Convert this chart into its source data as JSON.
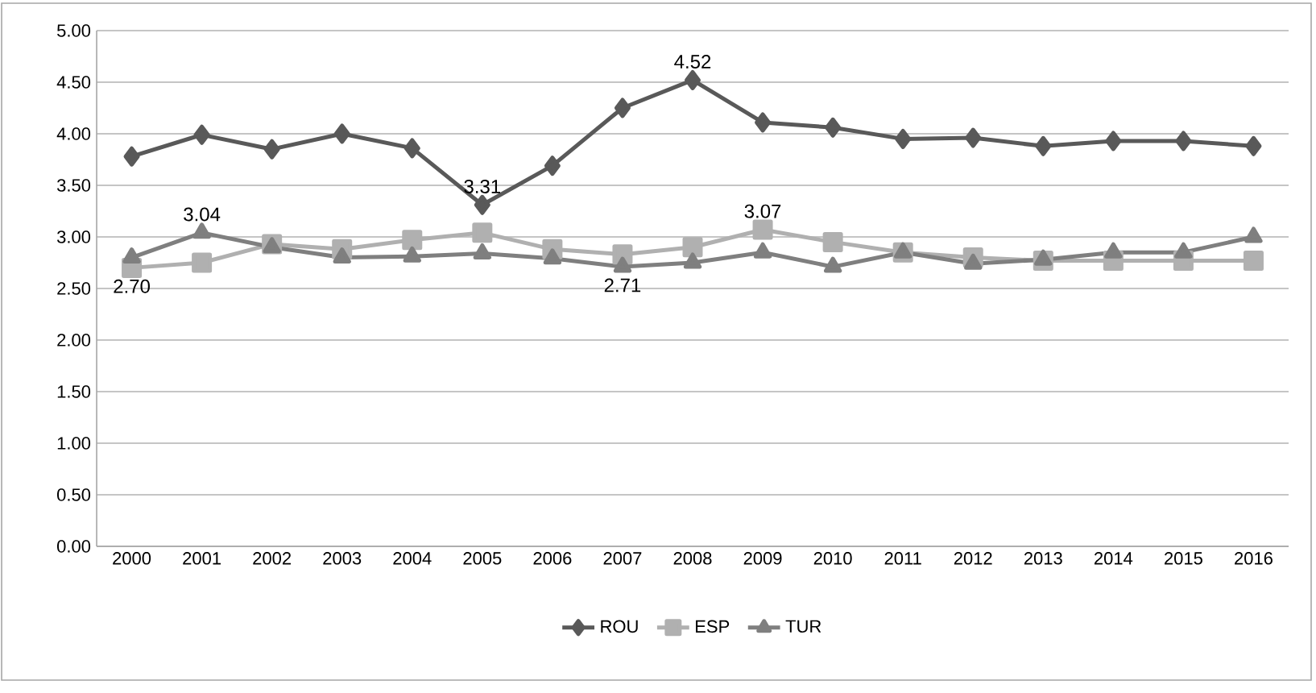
{
  "chart_data": {
    "type": "line",
    "categories": [
      "2000",
      "2001",
      "2002",
      "2003",
      "2004",
      "2005",
      "2006",
      "2007",
      "2008",
      "2009",
      "2010",
      "2011",
      "2012",
      "2013",
      "2014",
      "2015",
      "2016"
    ],
    "series": [
      {
        "name": "ROU",
        "color": "#595959",
        "marker": "diamond",
        "values": [
          3.78,
          3.99,
          3.85,
          4.0,
          3.86,
          3.31,
          3.69,
          4.25,
          4.52,
          4.11,
          4.06,
          3.95,
          3.96,
          3.88,
          3.93,
          3.93,
          3.88
        ],
        "value_labels": [
          null,
          null,
          null,
          null,
          null,
          "3.31",
          null,
          null,
          "4.52",
          null,
          null,
          null,
          null,
          null,
          null,
          null,
          null
        ]
      },
      {
        "name": "ESP",
        "color": "#b0b0b0",
        "marker": "square",
        "values": [
          2.7,
          2.75,
          2.93,
          2.88,
          2.97,
          3.04,
          2.88,
          2.83,
          2.9,
          3.07,
          2.95,
          2.85,
          2.8,
          2.77,
          2.77,
          2.77,
          2.77
        ],
        "value_labels": [
          "2.70",
          null,
          null,
          null,
          null,
          null,
          null,
          null,
          null,
          "3.07",
          null,
          null,
          null,
          null,
          null,
          null,
          null
        ]
      },
      {
        "name": "TUR",
        "color": "#7f7f7f",
        "marker": "triangle",
        "values": [
          2.8,
          3.04,
          2.9,
          2.8,
          2.81,
          2.84,
          2.79,
          2.71,
          2.75,
          2.85,
          2.71,
          2.85,
          2.74,
          2.78,
          2.85,
          2.85,
          3.0
        ],
        "value_labels": [
          null,
          "3.04",
          null,
          null,
          null,
          null,
          null,
          "2.71",
          null,
          null,
          null,
          null,
          null,
          null,
          null,
          null,
          null
        ]
      }
    ],
    "ylim": [
      0,
      5
    ],
    "yticks": [
      {
        "value": 0,
        "label": "0.00"
      },
      {
        "value": 0.5,
        "label": "0.50"
      },
      {
        "value": 1,
        "label": "1.00"
      },
      {
        "value": 1.5,
        "label": "1.50"
      },
      {
        "value": 2,
        "label": "2.00"
      },
      {
        "value": 2.5,
        "label": "2.50"
      },
      {
        "value": 3,
        "label": "3.00"
      },
      {
        "value": 3.5,
        "label": "3.50"
      },
      {
        "value": 4,
        "label": "4.00"
      },
      {
        "value": 4.5,
        "label": "4.50"
      },
      {
        "value": 5,
        "label": "5.00"
      }
    ],
    "grid": "y",
    "legend": "bottom",
    "line_style": "solid"
  }
}
